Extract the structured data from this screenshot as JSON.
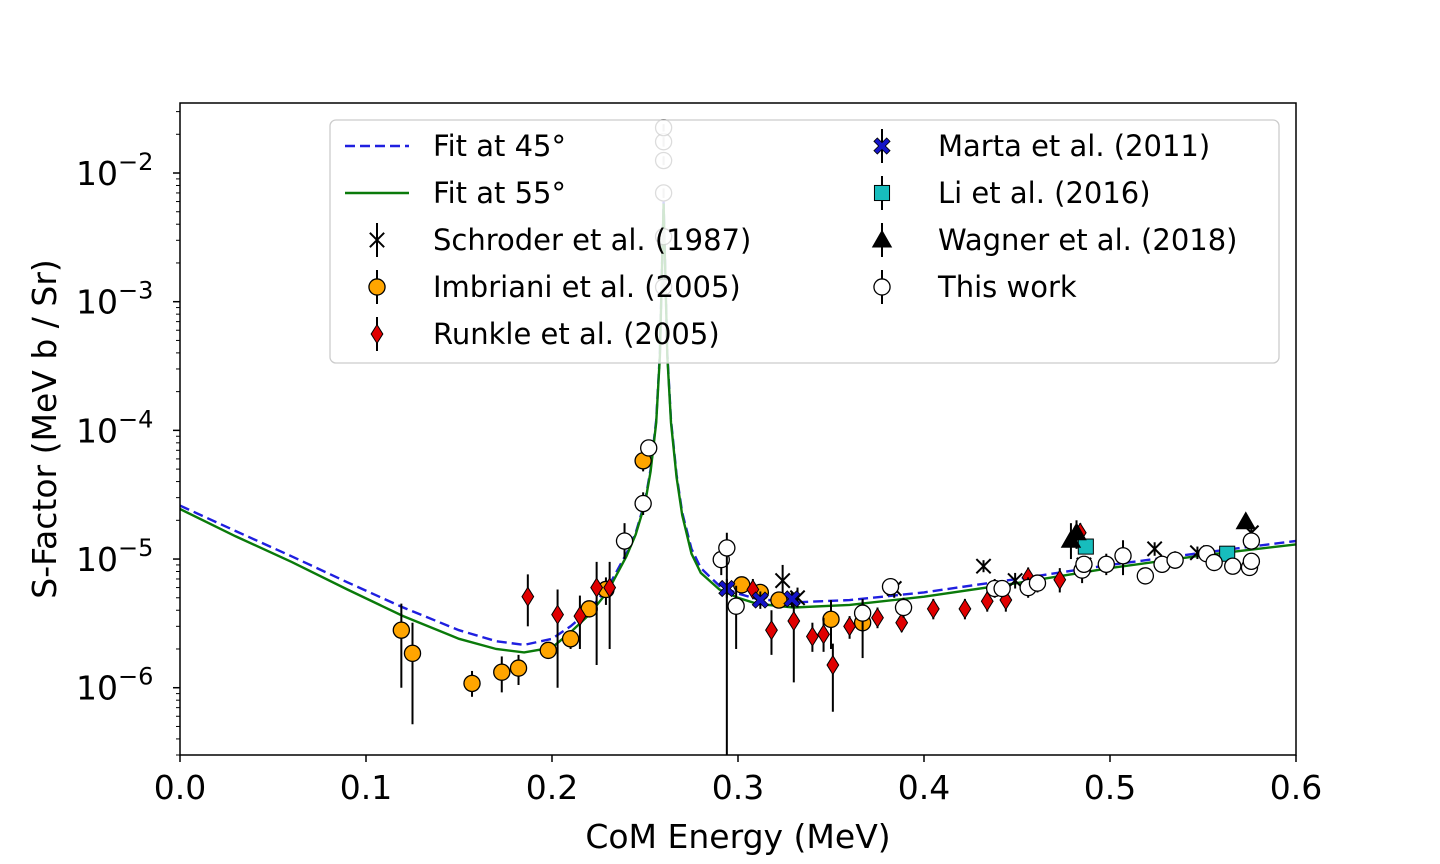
{
  "chart_data": {
    "type": "scatter",
    "title": "",
    "xlabel": "CoM Energy (MeV)",
    "ylabel": "S-Factor (MeV b / Sr)",
    "xlim": [
      0.0,
      0.6
    ],
    "ylim": [
      3e-07,
      0.035
    ],
    "yscale": "log",
    "x_ticks": [
      {
        "value": 0.0,
        "label": "0.0"
      },
      {
        "value": 0.1,
        "label": "0.1"
      },
      {
        "value": 0.2,
        "label": "0.2"
      },
      {
        "value": 0.3,
        "label": "0.3"
      },
      {
        "value": 0.4,
        "label": "0.4"
      },
      {
        "value": 0.5,
        "label": "0.5"
      },
      {
        "value": 0.6,
        "label": "0.6"
      }
    ],
    "y_ticks": [
      {
        "exp": -6,
        "base": "10",
        "sup": "−6"
      },
      {
        "exp": -5,
        "base": "10",
        "sup": "−5"
      },
      {
        "exp": -4,
        "base": "10",
        "sup": "−4"
      },
      {
        "exp": -3,
        "base": "10",
        "sup": "−3"
      },
      {
        "exp": -2,
        "base": "10",
        "sup": "−2"
      }
    ],
    "grid": false,
    "legend_position": "top",
    "fits": [
      {
        "name": "Fit at 45°",
        "color": "#1f1fe0",
        "style": "dashed",
        "x": [
          0.0,
          0.03,
          0.06,
          0.09,
          0.12,
          0.15,
          0.17,
          0.185,
          0.2,
          0.21,
          0.22,
          0.23,
          0.24,
          0.245,
          0.25,
          0.253,
          0.256,
          0.258,
          0.259,
          0.26,
          0.261,
          0.262,
          0.264,
          0.267,
          0.27,
          0.275,
          0.28,
          0.29,
          0.3,
          0.31,
          0.33,
          0.36,
          0.4,
          0.45,
          0.5,
          0.55,
          0.6
        ],
        "y": [
          2.6e-05,
          1.65e-05,
          1.05e-05,
          6.6e-06,
          4.2e-06,
          2.8e-06,
          2.3e-06,
          2.15e-06,
          2.4e-06,
          3e-06,
          4e-06,
          6e-06,
          1.1e-05,
          1.6e-05,
          2.8e-05,
          5e-05,
          0.00012,
          0.0004,
          0.0015,
          0.006,
          0.0015,
          0.0004,
          0.00012,
          4.5e-05,
          2.3e-05,
          1.2e-05,
          8.5e-06,
          6.2e-06,
          5.4e-06,
          4.9e-06,
          4.6e-06,
          4.8e-06,
          5.5e-06,
          7e-06,
          9e-06,
          1.12e-05,
          1.38e-05
        ]
      },
      {
        "name": "Fit at 55°",
        "color": "#0a7a0a",
        "style": "solid",
        "x": [
          0.0,
          0.03,
          0.06,
          0.09,
          0.12,
          0.15,
          0.17,
          0.185,
          0.2,
          0.21,
          0.22,
          0.23,
          0.24,
          0.245,
          0.25,
          0.253,
          0.256,
          0.258,
          0.259,
          0.26,
          0.261,
          0.262,
          0.264,
          0.267,
          0.27,
          0.275,
          0.28,
          0.29,
          0.3,
          0.31,
          0.33,
          0.36,
          0.4,
          0.45,
          0.5,
          0.55,
          0.6
        ],
        "y": [
          2.45e-05,
          1.5e-05,
          9.5e-06,
          5.8e-06,
          3.6e-06,
          2.4e-06,
          2e-06,
          1.88e-06,
          2.05e-06,
          2.7e-06,
          3.7e-06,
          5.6e-06,
          1.05e-05,
          1.55e-05,
          2.7e-05,
          4.8e-05,
          0.000115,
          0.00038,
          0.00145,
          0.0058,
          0.00145,
          0.00038,
          0.000115,
          4.3e-05,
          2.2e-05,
          1.1e-05,
          7.8e-06,
          5.8e-06,
          5e-06,
          4.5e-06,
          4.2e-06,
          4.4e-06,
          5.1e-06,
          6.5e-06,
          8.5e-06,
          1.07e-05,
          1.3e-05
        ]
      }
    ],
    "series": [
      {
        "name": "Schroder et al. (1987)",
        "marker": "x",
        "color": "#000000",
        "points": [
          [
            0.324,
            6.8e-06,
            9e-06,
            5.2e-06
          ],
          [
            0.332,
            5e-06,
            6e-06,
            4.2e-06
          ],
          [
            0.384,
            5.9e-06,
            7e-06,
            5e-06
          ],
          [
            0.432,
            8.8e-06,
            9.8e-06,
            7.9e-06
          ],
          [
            0.449,
            6.8e-06,
            7.8e-06,
            5.9e-06
          ],
          [
            0.486,
            9e-06,
            1.05e-05,
            7.6e-06
          ],
          [
            0.524,
            1.2e-05,
            1.35e-05,
            1.06e-05
          ],
          [
            0.547,
            1.12e-05,
            1.25e-05,
            1e-05
          ],
          [
            0.576,
            1.6e-05,
            1.85e-05,
            1.4e-05
          ]
        ]
      },
      {
        "name": "Imbriani et al. (2005)",
        "marker": "o",
        "color": "#ffa500",
        "points": [
          [
            0.119,
            2.8e-06,
            4.5e-06,
            1e-06
          ],
          [
            0.125,
            1.85e-06,
            3.2e-06,
            5.2e-07
          ],
          [
            0.157,
            1.08e-06,
            1.35e-06,
            8.5e-07
          ],
          [
            0.173,
            1.32e-06,
            1.75e-06,
            9.2e-07
          ],
          [
            0.182,
            1.42e-06,
            1.8e-06,
            1.05e-06
          ],
          [
            0.198,
            1.95e-06,
            2.2e-06,
            1.7e-06
          ],
          [
            0.21,
            2.4e-06,
            2.8e-06,
            2e-06
          ],
          [
            0.22,
            4.1e-06,
            4.6e-06,
            3.6e-06
          ],
          [
            0.229,
            5.8e-06,
            7.2e-06,
            4.4e-06
          ],
          [
            0.249,
            5.8e-05,
            7e-05,
            4.8e-05
          ],
          [
            0.302,
            6.3e-06,
            7.2e-06,
            5.5e-06
          ],
          [
            0.312,
            5.5e-06,
            6.3e-06,
            4.7e-06
          ],
          [
            0.322,
            4.8e-06,
            5.3e-06,
            4.2e-06
          ],
          [
            0.35,
            3.4e-06,
            4.8e-06,
            2e-06
          ],
          [
            0.367,
            3.2e-06,
            4.8e-06,
            1.7e-06
          ]
        ]
      },
      {
        "name": "Runkle et al. (2005)",
        "marker": "D",
        "color": "#e00000",
        "points": [
          [
            0.187,
            5.1e-06,
            7.6e-06,
            3e-06
          ],
          [
            0.203,
            3.7e-06,
            5.8e-06,
            1e-06
          ],
          [
            0.215,
            3.6e-06,
            5.2e-06,
            2e-06
          ],
          [
            0.224,
            6e-06,
            9.5e-06,
            1.5e-06
          ],
          [
            0.231,
            6e-06,
            9.5e-06,
            2e-06
          ],
          [
            0.308,
            5.8e-06,
            7e-06,
            5e-06
          ],
          [
            0.318,
            2.8e-06,
            4e-06,
            1.8e-06
          ],
          [
            0.33,
            3.3e-06,
            5.5e-06,
            1.1e-06
          ],
          [
            0.34,
            2.5e-06,
            3.2e-06,
            1.9e-06
          ],
          [
            0.346,
            2.6e-06,
            3.5e-06,
            1.9e-06
          ],
          [
            0.351,
            1.5e-06,
            2.2e-06,
            6.5e-07
          ],
          [
            0.36,
            3e-06,
            3.6e-06,
            2.4e-06
          ],
          [
            0.375,
            3.5e-06,
            4.2e-06,
            2.9e-06
          ],
          [
            0.388,
            3.2e-06,
            3.9e-06,
            2.7e-06
          ],
          [
            0.405,
            4.1e-06,
            4.9e-06,
            3.4e-06
          ],
          [
            0.422,
            4.1e-06,
            4.9e-06,
            3.4e-06
          ],
          [
            0.434,
            4.7e-06,
            5.6e-06,
            3.9e-06
          ],
          [
            0.444,
            4.8e-06,
            5.8e-06,
            3.9e-06
          ],
          [
            0.456,
            7.2e-06,
            8.6e-06,
            5.9e-06
          ],
          [
            0.473,
            6.9e-06,
            8.5e-06,
            5.5e-06
          ],
          [
            0.484,
            1.6e-05,
            1.9e-05,
            1.3e-05
          ]
        ]
      },
      {
        "name": "Marta et al. (2011)",
        "marker": "X",
        "color": "#1414c8",
        "points": [
          [
            0.294,
            5.9e-06,
            7e-06,
            5e-06
          ],
          [
            0.312,
            4.8e-06,
            5.6e-06,
            4.1e-06
          ],
          [
            0.329,
            4.9e-06,
            5.6e-06,
            4.2e-06
          ]
        ]
      },
      {
        "name": "Li et al. (2016)",
        "marker": "s",
        "color": "#17bdbd",
        "points": [
          [
            0.487,
            1.25e-05,
            1.4e-05,
            1.1e-05
          ],
          [
            0.563,
            1.1e-05,
            1.2e-05,
            1e-05
          ]
        ]
      },
      {
        "name": "Wagner et al. (2018)",
        "marker": "^",
        "color": "#000000",
        "points": [
          [
            0.479,
            1.4e-05,
            1.9e-05,
            1e-05
          ],
          [
            0.482,
            1.6e-05,
            2e-05,
            1.2e-05
          ],
          [
            0.573,
            1.95e-05,
            2.1e-05,
            1.8e-05
          ]
        ]
      },
      {
        "name": "This work",
        "marker": "o",
        "color": "#ffffff",
        "points": [
          [
            0.239,
            1.38e-05,
            1.9e-05,
            1e-05
          ],
          [
            0.249,
            2.7e-05,
            3.3e-05,
            2.2e-05
          ],
          [
            0.252,
            7.3e-05,
            8.1e-05,
            6.6e-05
          ],
          [
            0.26,
            0.0013,
            0.0015,
            0.0011
          ],
          [
            0.26,
            0.0032,
            0.0035,
            0.0029
          ],
          [
            0.26,
            0.007,
            0.0076,
            0.0064
          ],
          [
            0.26,
            0.0125,
            0.0135,
            0.0115
          ],
          [
            0.26,
            0.0175,
            0.019,
            0.016
          ],
          [
            0.26,
            0.0225,
            0.024,
            0.021
          ],
          [
            0.291,
            9.9e-06,
            1.25e-05,
            7.5e-06
          ],
          [
            0.294,
            1.22e-05,
            1.6e-05,
            3e-07
          ],
          [
            0.299,
            4.3e-06,
            6.2e-06,
            2e-06
          ],
          [
            0.367,
            3.8e-06,
            4.9e-06,
            2.7e-06
          ],
          [
            0.382,
            6.1e-06,
            6.9e-06,
            5.3e-06
          ],
          [
            0.389,
            4.2e-06,
            5e-06,
            3.5e-06
          ],
          [
            0.438,
            5.9e-06,
            7e-06,
            5e-06
          ],
          [
            0.442,
            5.9e-06,
            6.6e-06,
            5.2e-06
          ],
          [
            0.456,
            6e-06,
            7.2e-06,
            5e-06
          ],
          [
            0.461,
            6.5e-06,
            7.5e-06,
            5.5e-06
          ],
          [
            0.485,
            8.2e-06,
            1.05e-05,
            6.5e-06
          ],
          [
            0.486,
            9.1e-06,
            1e-05,
            8.2e-06
          ],
          [
            0.498,
            9.1e-06,
            1.1e-05,
            7.5e-06
          ],
          [
            0.507,
            1.06e-05,
            1.4e-05,
            7.5e-06
          ],
          [
            0.519,
            7.4e-06,
            8e-06,
            6.8e-06
          ],
          [
            0.528,
            9.1e-06,
            1.05e-05,
            7.8e-06
          ],
          [
            0.535,
            9.8e-06,
            1.15e-05,
            8.4e-06
          ],
          [
            0.552,
            1.1e-05,
            1.2e-05,
            1e-05
          ],
          [
            0.556,
            9.4e-06,
            1.08e-05,
            8.2e-06
          ],
          [
            0.566,
            8.8e-06,
            9.5e-06,
            8.1e-06
          ],
          [
            0.575,
            8.6e-06,
            9.5e-06,
            7.8e-06
          ],
          [
            0.576,
            1.38e-05,
            1.55e-05,
            1.2e-05
          ],
          [
            0.576,
            9.6e-06,
            1.1e-05,
            8.4e-06
          ]
        ]
      }
    ]
  }
}
